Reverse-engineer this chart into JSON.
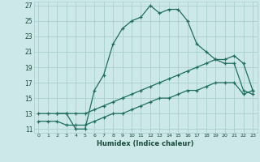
{
  "xlabel": "Humidex (Indice chaleur)",
  "bg_color": "#cce8e8",
  "grid_color": "#aacece",
  "line_color": "#1e6e5e",
  "xlim": [
    -0.5,
    23.5
  ],
  "ylim": [
    10.5,
    27.5
  ],
  "xticks": [
    0,
    1,
    2,
    3,
    4,
    5,
    6,
    7,
    8,
    9,
    10,
    11,
    12,
    13,
    14,
    15,
    16,
    17,
    18,
    19,
    20,
    21,
    22,
    23
  ],
  "yticks": [
    11,
    13,
    15,
    17,
    19,
    21,
    23,
    25,
    27
  ],
  "line1_x": [
    0,
    1,
    2,
    3,
    4,
    5,
    6,
    7,
    8,
    9,
    10,
    11,
    12,
    13,
    14,
    15,
    16,
    17,
    18,
    19,
    20,
    21,
    22,
    23
  ],
  "line1_y": [
    13,
    13,
    13,
    13,
    11,
    11,
    16,
    18,
    22,
    24,
    25,
    25.5,
    27,
    26,
    26.5,
    26.5,
    25,
    22,
    21,
    20,
    19.5,
    19.5,
    16,
    15.5
  ],
  "line2_x": [
    2,
    3,
    4,
    5,
    6,
    7,
    8,
    9,
    10,
    11,
    12,
    13,
    14,
    15,
    16,
    17,
    18,
    19,
    20,
    21,
    22,
    23
  ],
  "line2_y": [
    13,
    13,
    13,
    13,
    13.5,
    14,
    14.5,
    15,
    15.5,
    16,
    16.5,
    17,
    17.5,
    18,
    18.5,
    19,
    19.5,
    20,
    20,
    20.5,
    19.5,
    16
  ],
  "line3_x": [
    0,
    1,
    2,
    3,
    4,
    5,
    6,
    7,
    8,
    9,
    10,
    11,
    12,
    13,
    14,
    15,
    16,
    17,
    18,
    19,
    20,
    21,
    22,
    23
  ],
  "line3_y": [
    12,
    12,
    12,
    11.5,
    11.5,
    11.5,
    12,
    12.5,
    13,
    13,
    13.5,
    14,
    14.5,
    15,
    15,
    15.5,
    16,
    16,
    16.5,
    17,
    17,
    17,
    15.5,
    16
  ]
}
